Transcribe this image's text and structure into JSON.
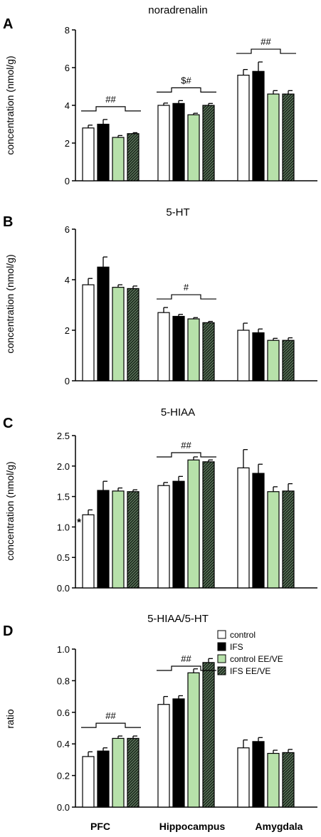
{
  "chart_data": [
    {
      "type": "bar",
      "panel_letter": "A",
      "title": "noradrenalin",
      "ylabel": "concentration (nmol/g)",
      "ylim": [
        0,
        8
      ],
      "yticks": [
        0,
        2,
        4,
        6,
        8
      ],
      "categories": [
        "PFC",
        "Hippocampus",
        "Amygdala"
      ],
      "series": [
        {
          "name": "control",
          "values": [
            2.8,
            4.0,
            5.6
          ],
          "errors": [
            0.15,
            0.12,
            0.3
          ]
        },
        {
          "name": "IFS",
          "values": [
            3.0,
            4.1,
            5.8
          ],
          "errors": [
            0.25,
            0.15,
            0.5
          ]
        },
        {
          "name": "control EE/VE",
          "values": [
            2.3,
            3.5,
            4.6
          ],
          "errors": [
            0.1,
            0.08,
            0.18
          ]
        },
        {
          "name": "IFS EE/VE",
          "values": [
            2.5,
            4.0,
            4.6
          ],
          "errors": [
            0.05,
            0.1,
            0.18
          ]
        }
      ],
      "annotations": [
        {
          "category": 0,
          "text": "##"
        },
        {
          "category": 1,
          "text": "$#"
        },
        {
          "category": 2,
          "text": "##"
        }
      ],
      "asterisks": []
    },
    {
      "type": "bar",
      "panel_letter": "B",
      "title": "5-HT",
      "ylabel": "concentration (nmol/g)",
      "ylim": [
        0,
        6
      ],
      "yticks": [
        0,
        2,
        4,
        6
      ],
      "categories": [
        "PFC",
        "Hippocampus",
        "Amygdala"
      ],
      "series": [
        {
          "name": "control",
          "values": [
            3.8,
            2.7,
            2.0
          ],
          "errors": [
            0.25,
            0.2,
            0.28
          ]
        },
        {
          "name": "IFS",
          "values": [
            4.5,
            2.55,
            1.9
          ],
          "errors": [
            0.4,
            0.08,
            0.15
          ]
        },
        {
          "name": "control EE/VE",
          "values": [
            3.7,
            2.45,
            1.6
          ],
          "errors": [
            0.1,
            0.05,
            0.08
          ]
        },
        {
          "name": "IFS EE/VE",
          "values": [
            3.65,
            2.3,
            1.6
          ],
          "errors": [
            0.1,
            0.05,
            0.1
          ]
        }
      ],
      "annotations": [
        {
          "category": 1,
          "text": "#"
        }
      ],
      "asterisks": []
    },
    {
      "type": "bar",
      "panel_letter": "C",
      "title": "5-HIAA",
      "ylabel": "concentration (nmol/g)",
      "ylim": [
        0,
        2.5
      ],
      "yticks": [
        "0.0",
        "0.5",
        "1.0",
        "1.5",
        "2.0",
        "2.5"
      ],
      "categories": [
        "PFC",
        "Hippocampus",
        "Amygdala"
      ],
      "series": [
        {
          "name": "control",
          "values": [
            1.2,
            1.68,
            1.97
          ],
          "errors": [
            0.08,
            0.05,
            0.3
          ]
        },
        {
          "name": "IFS",
          "values": [
            1.6,
            1.75,
            1.88
          ],
          "errors": [
            0.15,
            0.08,
            0.15
          ]
        },
        {
          "name": "control EE/VE",
          "values": [
            1.59,
            2.1,
            1.58
          ],
          "errors": [
            0.05,
            0.05,
            0.08
          ]
        },
        {
          "name": "IFS EE/VE",
          "values": [
            1.58,
            2.07,
            1.59
          ],
          "errors": [
            0.03,
            0.03,
            0.12
          ]
        }
      ],
      "annotations": [
        {
          "category": 1,
          "text": "##"
        }
      ],
      "asterisks": [
        {
          "category": 0,
          "series": 0,
          "text": "*"
        }
      ]
    },
    {
      "type": "bar",
      "panel_letter": "D",
      "title": "5-HIAA/5-HT",
      "ylabel": "ratio",
      "ylim": [
        0,
        1.0
      ],
      "yticks": [
        "0.0",
        "0.2",
        "0.4",
        "0.6",
        "0.8",
        "1.0"
      ],
      "categories": [
        "PFC",
        "Hippocampus",
        "Amygdala"
      ],
      "series": [
        {
          "name": "control",
          "values": [
            0.32,
            0.65,
            0.375
          ],
          "errors": [
            0.03,
            0.05,
            0.05
          ]
        },
        {
          "name": "IFS",
          "values": [
            0.355,
            0.685,
            0.415
          ],
          "errors": [
            0.02,
            0.02,
            0.025
          ]
        },
        {
          "name": "control EE/VE",
          "values": [
            0.435,
            0.85,
            0.34
          ],
          "errors": [
            0.015,
            0.025,
            0.02
          ]
        },
        {
          "name": "IFS EE/VE",
          "values": [
            0.435,
            0.915,
            0.345
          ],
          "errors": [
            0.015,
            0.025,
            0.02
          ]
        }
      ],
      "annotations": [
        {
          "category": 0,
          "text": "##"
        },
        {
          "category": 1,
          "text": "##"
        }
      ],
      "asterisks": []
    }
  ],
  "legend": {
    "items": [
      {
        "label": "control",
        "fill": "#ffffff"
      },
      {
        "label": "IFS",
        "fill": "#000000"
      },
      {
        "label": "control EE/VE",
        "fill": "#b7e1aa"
      },
      {
        "label": "IFS EE/VE",
        "fill": "hatch"
      }
    ]
  },
  "colors": {
    "control": "#ffffff",
    "IFS": "#000000",
    "control_ee_ve": "#b7e1aa",
    "ifs_ee_ve_base": "#1c2a1c",
    "ifs_ee_ve_hatch": "#6f8a6f"
  }
}
